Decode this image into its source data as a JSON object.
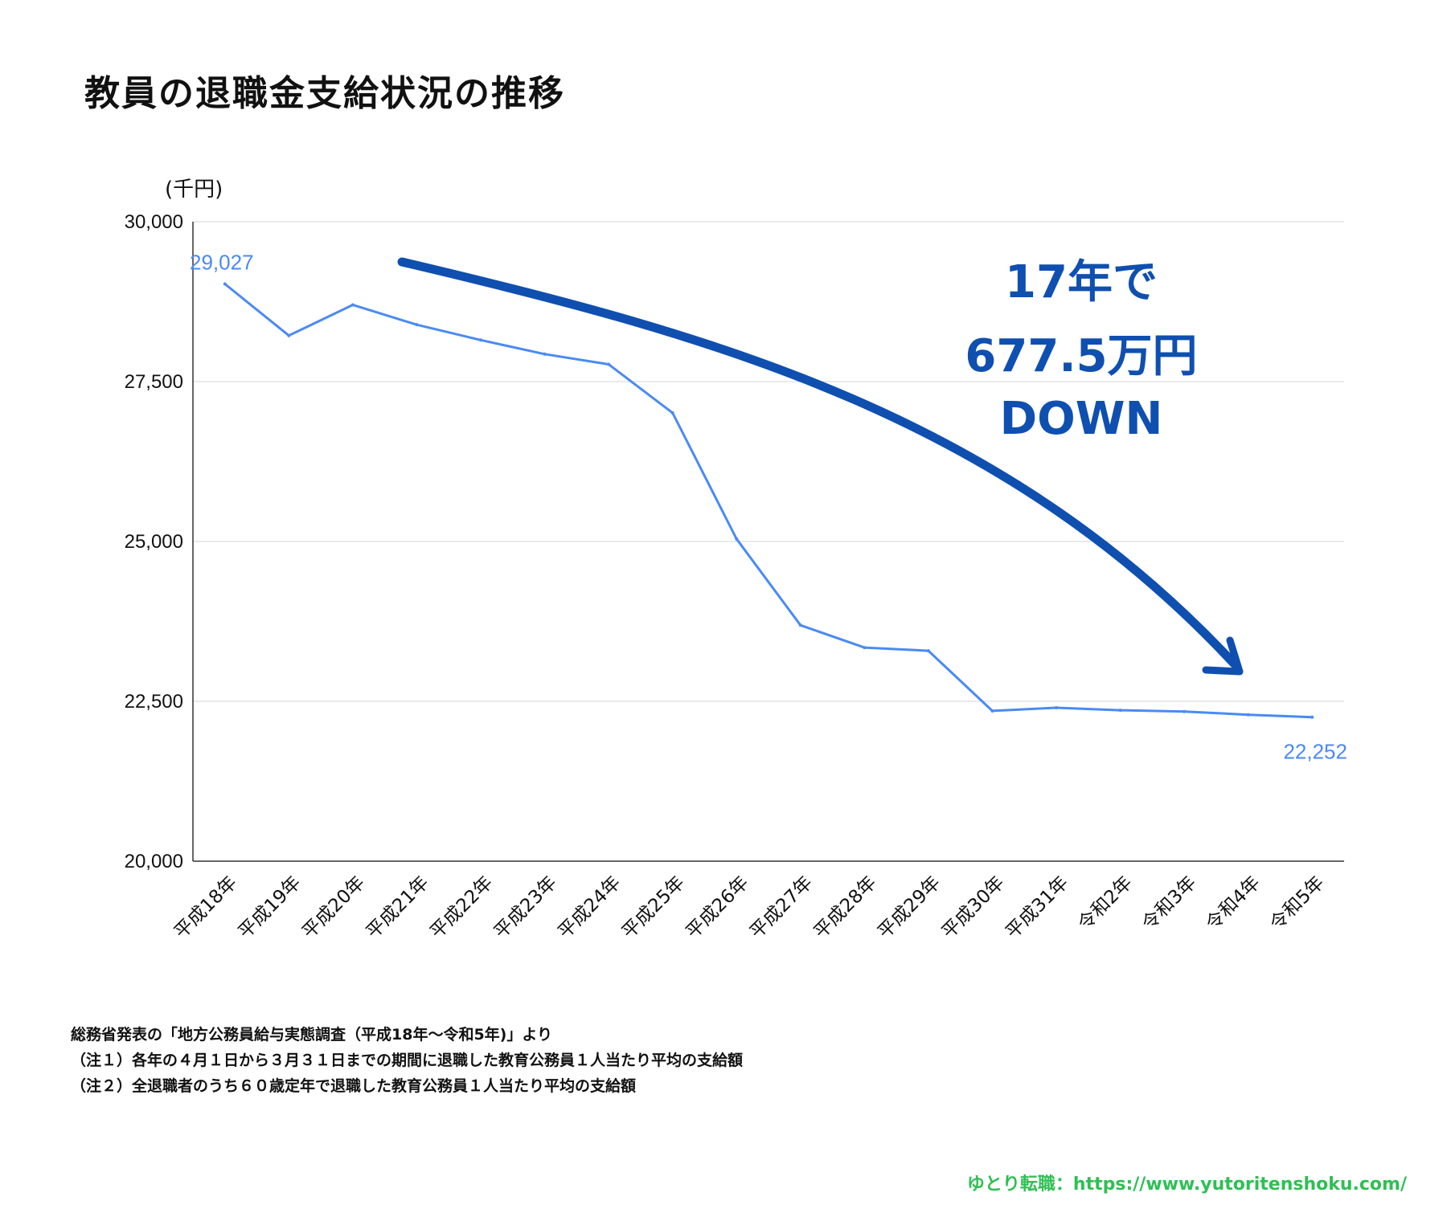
{
  "title": "教員の退職金支給状況の推移",
  "chart_data": {
    "type": "line",
    "title": "教員の退職金支給状況の推移",
    "unit_label": "(千円)",
    "categories": [
      "平成18年",
      "平成19年",
      "平成20年",
      "平成21年",
      "平成22年",
      "平成23年",
      "平成24年",
      "平成25年",
      "平成26年",
      "平成27年",
      "平成28年",
      "平成29年",
      "平成30年",
      "平成31年",
      "令和2年",
      "令和3年",
      "令和4年",
      "令和5年"
    ],
    "series": [
      {
        "values": [
          29027,
          28220,
          28700,
          28390,
          28150,
          27930,
          27770,
          27010,
          25040,
          23690,
          23340,
          23290,
          22350,
          22400,
          22360,
          22340,
          22290,
          22252
        ],
        "color": "#4a8af4"
      }
    ],
    "ylim": [
      20000,
      30000
    ],
    "yticks": [
      20000,
      22500,
      25000,
      27500,
      30000
    ],
    "ytick_labels": [
      "20,000",
      "22,500",
      "25,000",
      "27,500",
      "30,000"
    ],
    "data_labels": {
      "first": "29,027",
      "last": "22,252"
    },
    "grid": true,
    "annotation": {
      "lines": [
        "17年で",
        "677.5万円",
        "DOWN"
      ],
      "color": "#0f4fb0"
    }
  },
  "notes": [
    "総務省発表の「地方公務員給与実態調査（平成18年〜令和5年)」より",
    "（注１）各年の４月１日から３月３１日までの期間に退職した教育公務員１人当たり平均の支給額",
    "（注２）全退職者のうち６０歳定年で退職した教育公務員１人当たり平均の支給額"
  ],
  "footer": "ゆとり転職：https://www.yutoritenshoku.com/"
}
